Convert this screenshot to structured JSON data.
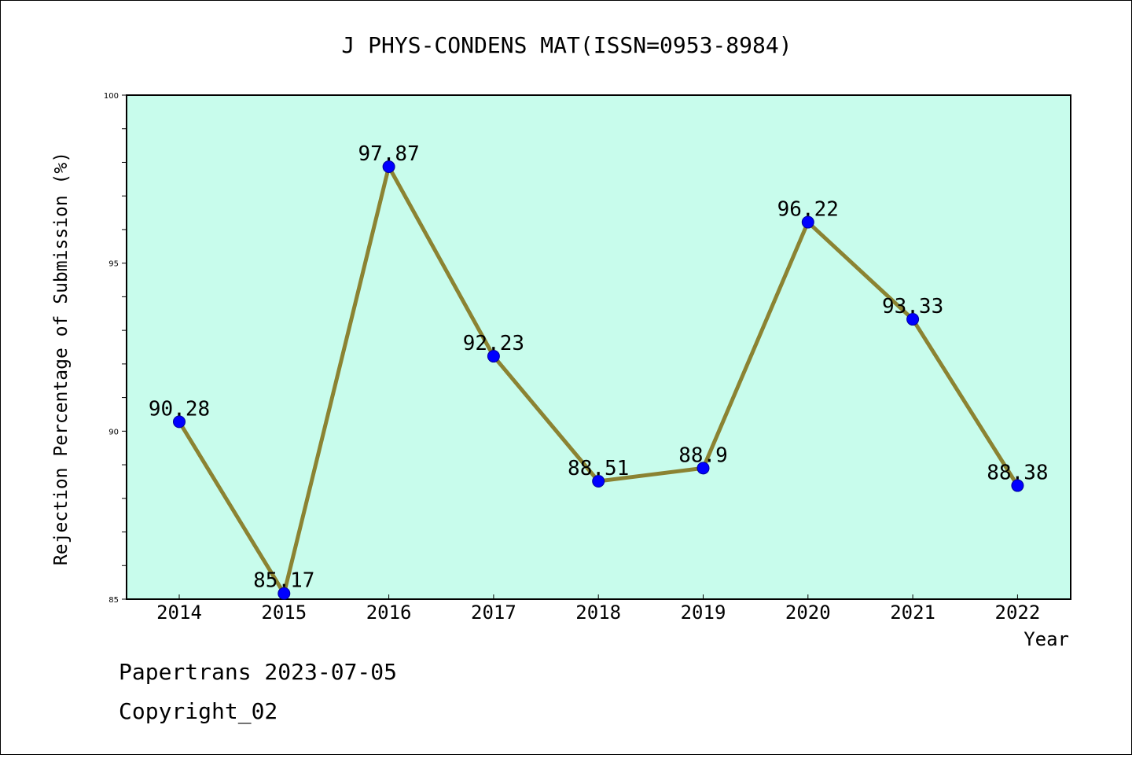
{
  "footer": {
    "line1": "Papertrans 2023-07-05",
    "line2": "Copyright_02"
  },
  "chart_data": {
    "type": "line",
    "title": "J PHYS-CONDENS MAT(ISSN=0953-8984)",
    "xlabel": "Year",
    "ylabel": "Rejection Percentage of Submission (%)",
    "categories": [
      "2014",
      "2015",
      "2016",
      "2017",
      "2018",
      "2019",
      "2020",
      "2021",
      "2022"
    ],
    "values": [
      90.28,
      85.17,
      97.87,
      92.23,
      88.51,
      88.9,
      96.22,
      93.33,
      88.38
    ],
    "data_labels": [
      "90.28",
      "85.17",
      "97.87",
      "92.23",
      "88.51",
      "88.9",
      "96.22",
      "93.33",
      "88.38"
    ],
    "ylim": [
      85,
      100
    ],
    "yticks": [
      "85",
      "90",
      "95",
      "100"
    ],
    "grid": false,
    "legend": "none",
    "colors": {
      "plot_background": "#c8fcec",
      "line": "#8b8332",
      "marker": "#0000ff"
    }
  }
}
